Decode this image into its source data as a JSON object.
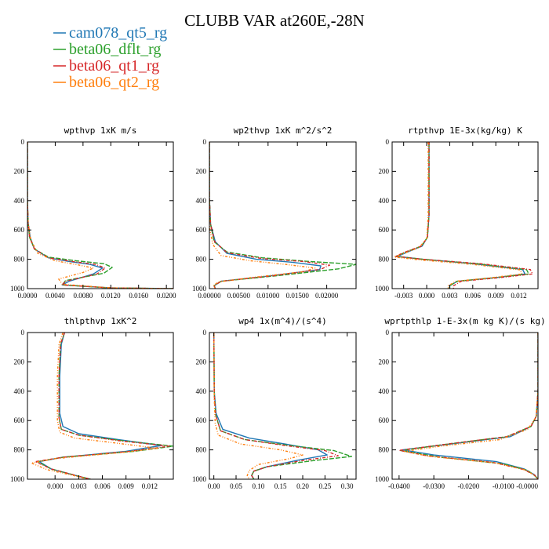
{
  "title": "CLUBB VAR at260E,-28N",
  "legend": [
    {
      "name": "cam078_qt5_rg",
      "color": "#1f77b4",
      "dash": ""
    },
    {
      "name": "beta06_dflt_rg",
      "color": "#2ca02c",
      "dash": "6,2"
    },
    {
      "name": "beta06_qt1_rg",
      "color": "#d62728",
      "dash": "4,2,1,2"
    },
    {
      "name": "beta06_qt2_rg",
      "color": "#ff7f0e",
      "dash": "3,2,1,2,1,2"
    }
  ],
  "chart_data": [
    {
      "type": "line",
      "title": "wpthvp  1xK m/s",
      "xlim": [
        0,
        0.021
      ],
      "ylim": [
        1000,
        0
      ],
      "xticks": [
        0.0,
        0.004,
        0.008,
        0.012,
        0.016,
        0.02
      ],
      "xtick_labels": [
        "0.0000",
        "0.0040",
        "0.0080",
        "0.0120",
        "0.0160",
        "0.0200"
      ],
      "yticks": [
        0,
        200,
        400,
        600,
        800,
        1000
      ],
      "ytick_labels": [
        "0",
        "200",
        "400",
        "600",
        "800",
        "1000"
      ],
      "grid": false,
      "series": [
        {
          "name": "cam078_qt5_rg",
          "x": [
            0,
            0,
            0.0001,
            0.0004,
            0.001,
            0.003,
            0.006,
            0.009,
            0.0108,
            0.0095,
            0.006,
            0.005,
            0.012,
            0.021
          ],
          "y": [
            0,
            400,
            550,
            650,
            730,
            790,
            815,
            835,
            860,
            900,
            950,
            975,
            995,
            1000
          ]
        },
        {
          "name": "beta06_dflt_rg",
          "x": [
            0,
            0,
            0.0001,
            0.0003,
            0.001,
            0.003,
            0.007,
            0.011,
            0.0122,
            0.011,
            0.0055,
            0.005,
            0.012,
            0.021
          ],
          "y": [
            0,
            400,
            550,
            650,
            730,
            785,
            810,
            830,
            855,
            895,
            945,
            975,
            995,
            1000
          ]
        },
        {
          "name": "beta06_qt1_rg",
          "x": [
            0,
            0,
            0.0001,
            0.0003,
            0.001,
            0.003,
            0.0065,
            0.0098,
            0.0112,
            0.01,
            0.0055,
            0.005,
            0.012,
            0.021
          ],
          "y": [
            0,
            400,
            550,
            650,
            730,
            790,
            815,
            835,
            860,
            900,
            950,
            975,
            995,
            1000
          ]
        },
        {
          "name": "beta06_qt2_rg",
          "x": [
            0,
            0,
            0.0001,
            0.0005,
            0.0015,
            0.004,
            0.0075,
            0.0095,
            0.008,
            0.0045,
            0.005,
            0.012,
            0.021
          ],
          "y": [
            0,
            400,
            550,
            670,
            760,
            810,
            840,
            860,
            890,
            935,
            970,
            995,
            1000
          ]
        }
      ]
    },
    {
      "type": "line",
      "title": "wp2thvp  1xK m^2/s^2",
      "xlim": [
        0,
        0.025
      ],
      "ylim": [
        1000,
        0
      ],
      "xticks": [
        0.0,
        0.005,
        0.01,
        0.015,
        0.02
      ],
      "xtick_labels": [
        "0.00000",
        "0.00500",
        "0.01000",
        "0.01500",
        "0.02000"
      ],
      "yticks": [
        0,
        200,
        400,
        600,
        800,
        1000
      ],
      "ytick_labels": [
        "0",
        "200",
        "400",
        "600",
        "800",
        "1000"
      ],
      "grid": false,
      "series": [
        {
          "name": "cam078_qt5_rg",
          "x": [
            0,
            0,
            0.0002,
            0.001,
            0.003,
            0.008,
            0.014,
            0.019,
            0.0188,
            0.01,
            0.002,
            0.0008,
            0.001
          ],
          "y": [
            0,
            380,
            560,
            680,
            760,
            800,
            820,
            845,
            870,
            915,
            950,
            980,
            1000
          ]
        },
        {
          "name": "beta06_dflt_rg",
          "x": [
            0,
            0,
            0.0002,
            0.0008,
            0.003,
            0.009,
            0.017,
            0.025,
            0.022,
            0.012,
            0.002,
            0.0008,
            0.001
          ],
          "y": [
            0,
            380,
            560,
            680,
            750,
            790,
            815,
            835,
            865,
            910,
            950,
            980,
            1000
          ]
        },
        {
          "name": "beta06_qt1_rg",
          "x": [
            0,
            0,
            0.0002,
            0.0009,
            0.003,
            0.009,
            0.016,
            0.0205,
            0.019,
            0.011,
            0.002,
            0.0008,
            0.001
          ],
          "y": [
            0,
            380,
            560,
            680,
            755,
            795,
            815,
            840,
            868,
            912,
            950,
            980,
            1000
          ]
        },
        {
          "name": "beta06_qt2_rg",
          "x": [
            0,
            0,
            0.0001,
            0.0006,
            0.002,
            0.007,
            0.013,
            0.018,
            0.016,
            0.007,
            0.0015,
            0.0007,
            0.001
          ],
          "y": [
            0,
            400,
            600,
            700,
            775,
            810,
            835,
            860,
            885,
            925,
            955,
            980,
            1000
          ]
        }
      ]
    },
    {
      "type": "line",
      "title": "rtpthvp  1E-3x(kg/kg) K",
      "xlim": [
        -0.0045,
        0.0145
      ],
      "ylim": [
        1000,
        0
      ],
      "xticks": [
        -0.003,
        0.0,
        0.003,
        0.006,
        0.009,
        0.012
      ],
      "xtick_labels": [
        "-0.003",
        "0.000",
        "0.003",
        "0.006",
        "0.009",
        "0.012"
      ],
      "yticks": [
        0,
        200,
        400,
        600,
        800,
        1000
      ],
      "ytick_labels": [
        "0",
        "200",
        "400",
        "600",
        "800",
        "1000"
      ],
      "grid": false,
      "series": [
        {
          "name": "cam078_qt5_rg",
          "x": [
            0.0003,
            0.0003,
            0.0001,
            -0.0006,
            -0.0025,
            -0.0038,
            -0.0005,
            0.006,
            0.0125,
            0.0128,
            0.009,
            0.004,
            0.003,
            0.003
          ],
          "y": [
            0,
            500,
            650,
            710,
            750,
            780,
            800,
            830,
            870,
            900,
            925,
            950,
            980,
            1000
          ]
        },
        {
          "name": "beta06_dflt_rg",
          "x": [
            0.0003,
            0.0003,
            0.0001,
            -0.0007,
            -0.0027,
            -0.004,
            -0.0005,
            0.0065,
            0.013,
            0.0133,
            0.009,
            0.004,
            0.003,
            0.003
          ],
          "y": [
            0,
            500,
            650,
            710,
            750,
            780,
            800,
            830,
            870,
            900,
            925,
            950,
            980,
            1000
          ]
        },
        {
          "name": "beta06_qt1_rg",
          "x": [
            0.0003,
            0.0003,
            0.0001,
            -0.0007,
            -0.0028,
            -0.0041,
            -0.0005,
            0.007,
            0.0135,
            0.0138,
            0.0095,
            0.0045,
            0.0035,
            0.0035
          ],
          "y": [
            0,
            500,
            650,
            710,
            750,
            780,
            800,
            830,
            870,
            900,
            925,
            950,
            980,
            1000
          ]
        },
        {
          "name": "beta06_qt2_rg",
          "x": [
            0.0002,
            0.0002,
            0.0,
            -0.001,
            -0.003,
            -0.0042,
            -0.0008,
            0.006,
            0.0122,
            0.0124,
            0.0085,
            0.0038,
            0.0028,
            0.0028
          ],
          "y": [
            0,
            500,
            660,
            720,
            760,
            785,
            805,
            835,
            872,
            900,
            925,
            950,
            980,
            1000
          ]
        }
      ]
    },
    {
      "type": "line",
      "title": "thlpthvp  1xK^2",
      "xlim": [
        -0.0035,
        0.015
      ],
      "ylim": [
        1000,
        0
      ],
      "xticks": [
        0.0,
        0.003,
        0.006,
        0.009,
        0.012
      ],
      "xtick_labels": [
        "0.000",
        "0.003",
        "0.006",
        "0.009",
        "0.012"
      ],
      "yticks": [
        0,
        200,
        400,
        600,
        800,
        1000
      ],
      "ytick_labels": [
        "0",
        "200",
        "400",
        "600",
        "800",
        "1000"
      ],
      "grid": false,
      "series": [
        {
          "name": "cam078_qt5_rg",
          "x": [
            0.0012,
            0.0008,
            0.0006,
            0.0006,
            0.001,
            0.003,
            0.008,
            0.0135,
            0.009,
            0.001,
            -0.002,
            -0.0005,
            0.003,
            0.0045
          ],
          "y": [
            0,
            80,
            300,
            550,
            640,
            690,
            730,
            770,
            810,
            850,
            880,
            930,
            980,
            1000
          ]
        },
        {
          "name": "beta06_dflt_rg",
          "x": [
            0.0012,
            0.0007,
            0.0005,
            0.0005,
            0.0008,
            0.003,
            0.009,
            0.015,
            0.01,
            0.001,
            -0.0022,
            -0.0005,
            0.003,
            0.0045
          ],
          "y": [
            0,
            80,
            300,
            580,
            660,
            700,
            740,
            775,
            810,
            850,
            880,
            930,
            980,
            1000
          ]
        },
        {
          "name": "beta06_qt1_rg",
          "x": [
            0.0012,
            0.0007,
            0.0005,
            0.0005,
            0.0008,
            0.003,
            0.0085,
            0.0145,
            0.0095,
            0.001,
            -0.0025,
            -0.0005,
            0.003,
            0.0045
          ],
          "y": [
            0,
            80,
            300,
            580,
            660,
            700,
            740,
            775,
            810,
            850,
            880,
            930,
            980,
            1000
          ]
        },
        {
          "name": "beta06_qt2_rg",
          "x": [
            0.001,
            0.0005,
            0.0003,
            0.0003,
            0.0006,
            0.0025,
            0.008,
            0.013,
            0.008,
            0.0,
            -0.003,
            -0.001,
            0.0028,
            0.0042
          ],
          "y": [
            0,
            80,
            300,
            600,
            680,
            720,
            755,
            790,
            820,
            860,
            890,
            935,
            980,
            1000
          ]
        }
      ]
    },
    {
      "type": "line",
      "title": "wp4  1x(m^4)/(s^4)",
      "xlim": [
        -0.01,
        0.32
      ],
      "ylim": [
        1000,
        0
      ],
      "xticks": [
        0.0,
        0.05,
        0.1,
        0.15,
        0.2,
        0.25,
        0.3
      ],
      "xtick_labels": [
        "0.00",
        "0.05",
        "0.10",
        "0.15",
        "0.20",
        "0.25",
        "0.30"
      ],
      "yticks": [
        0,
        200,
        400,
        600,
        800,
        1000
      ],
      "ytick_labels": [
        "0",
        "200",
        "400",
        "600",
        "800",
        "1000"
      ],
      "grid": false,
      "series": [
        {
          "name": "cam078_qt5_rg",
          "x": [
            0,
            0.001,
            0.005,
            0.02,
            0.08,
            0.16,
            0.235,
            0.255,
            0.19,
            0.12,
            0.09,
            0.085,
            0.09
          ],
          "y": [
            0,
            400,
            550,
            660,
            720,
            760,
            800,
            835,
            870,
            915,
            945,
            975,
            1000
          ]
        },
        {
          "name": "beta06_dflt_rg",
          "x": [
            0,
            0.001,
            0.004,
            0.015,
            0.07,
            0.17,
            0.27,
            0.31,
            0.22,
            0.12,
            0.09,
            0.085,
            0.09
          ],
          "y": [
            0,
            420,
            560,
            670,
            730,
            770,
            805,
            845,
            875,
            915,
            945,
            975,
            1000
          ]
        },
        {
          "name": "beta06_qt1_rg",
          "x": [
            0,
            0.001,
            0.004,
            0.015,
            0.07,
            0.16,
            0.25,
            0.28,
            0.2,
            0.12,
            0.09,
            0.085,
            0.09
          ],
          "y": [
            0,
            420,
            560,
            670,
            730,
            770,
            805,
            840,
            872,
            915,
            945,
            975,
            1000
          ]
        },
        {
          "name": "beta06_qt2_rg",
          "x": [
            0,
            0.001,
            0.003,
            0.01,
            0.06,
            0.15,
            0.2,
            0.17,
            0.1,
            0.08,
            0.075,
            0.08
          ],
          "y": [
            0,
            450,
            620,
            700,
            760,
            800,
            835,
            860,
            900,
            940,
            975,
            1000
          ]
        }
      ]
    },
    {
      "type": "line",
      "title": "wprtpthlp  1-E-3x(m kg K)/(s kg)",
      "xlim": [
        -0.042,
        0.0
      ],
      "ylim": [
        1000,
        0
      ],
      "xticks": [
        -0.04,
        -0.03,
        -0.02,
        -0.01,
        0.0
      ],
      "xtick_labels": [
        "-0.0400",
        "-0.0300",
        "-0.0200",
        "-0.0100",
        "-0.0000"
      ],
      "yticks": [
        0,
        200,
        400,
        600,
        800,
        1000
      ],
      "ytick_labels": [
        "0",
        "200",
        "400",
        "600",
        "800",
        "1000"
      ],
      "grid": false,
      "series": [
        {
          "name": "cam078_qt5_rg",
          "x": [
            0,
            0,
            -0.0005,
            -0.002,
            -0.008,
            -0.025,
            -0.039,
            -0.03,
            -0.012,
            -0.004,
            -0.001,
            0
          ],
          "y": [
            0,
            400,
            570,
            640,
            710,
            760,
            800,
            835,
            880,
            930,
            970,
            1000
          ]
        },
        {
          "name": "beta06_dflt_rg",
          "x": [
            0,
            0,
            -0.0005,
            -0.002,
            -0.009,
            -0.026,
            -0.0395,
            -0.028,
            -0.01,
            -0.003,
            -0.001,
            0
          ],
          "y": [
            0,
            400,
            570,
            640,
            710,
            760,
            805,
            850,
            895,
            940,
            975,
            1000
          ]
        },
        {
          "name": "beta06_qt1_rg",
          "x": [
            0,
            0,
            -0.0005,
            -0.002,
            -0.009,
            -0.026,
            -0.04,
            -0.032,
            -0.013,
            -0.004,
            -0.001,
            0
          ],
          "y": [
            0,
            400,
            570,
            640,
            710,
            760,
            803,
            840,
            885,
            935,
            972,
            1000
          ]
        },
        {
          "name": "beta06_qt2_rg",
          "x": [
            0,
            0,
            -0.0006,
            -0.003,
            -0.011,
            -0.028,
            -0.0385,
            -0.031,
            -0.012,
            -0.004,
            -0.001,
            0
          ],
          "y": [
            0,
            400,
            580,
            660,
            730,
            775,
            810,
            845,
            890,
            935,
            972,
            1000
          ]
        }
      ]
    }
  ]
}
